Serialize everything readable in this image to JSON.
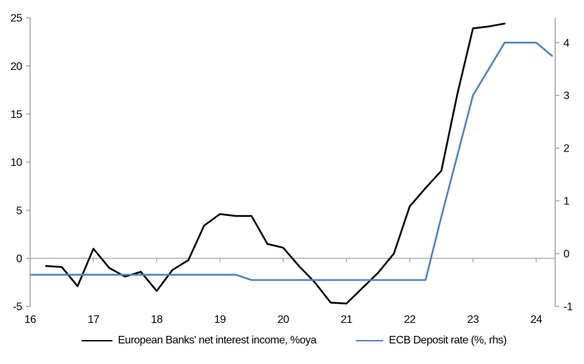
{
  "chart_data": {
    "type": "line",
    "grid": "zero-line-only",
    "legend_position": "bottom",
    "x_axis": {
      "range": [
        16,
        24.3
      ],
      "ticks": [
        16,
        17,
        18,
        19,
        20,
        21,
        22,
        23,
        24
      ]
    },
    "left_axis": {
      "range": [
        -5,
        25
      ],
      "ticks": [
        -5,
        0,
        5,
        10,
        15,
        20,
        25
      ]
    },
    "right_axis": {
      "range": [
        -1,
        4.47
      ],
      "ticks": [
        -1,
        0,
        1,
        2,
        3,
        4
      ]
    },
    "series": [
      {
        "name": "European Banks' net interest income, %oya",
        "axis": "left",
        "color": "#000000",
        "x": [
          16.25,
          16.5,
          16.75,
          17,
          17.25,
          17.5,
          17.75,
          18,
          18.25,
          18.5,
          18.75,
          19,
          19.25,
          19.5,
          19.75,
          20,
          20.25,
          20.5,
          20.75,
          21,
          21.25,
          21.5,
          21.75,
          22,
          22.25,
          22.5,
          22.75,
          23,
          23.25,
          23.5
        ],
        "values": [
          -0.8,
          -0.9,
          -2.9,
          1.0,
          -1.0,
          -1.9,
          -1.4,
          -3.4,
          -1.2,
          -0.2,
          3.4,
          4.6,
          4.4,
          4.4,
          1.5,
          1.1,
          -0.8,
          -2.5,
          -4.6,
          -4.7,
          -3.1,
          -1.5,
          0.5,
          5.4,
          7.3,
          9.1,
          17.0,
          23.9,
          24.1,
          24.4
        ]
      },
      {
        "name": "ECB Deposit rate (%, rhs)",
        "axis": "right",
        "color": "#4f81bd",
        "x": [
          16,
          16.25,
          16.5,
          16.75,
          17,
          17.25,
          17.5,
          17.75,
          18,
          18.25,
          18.5,
          18.75,
          19,
          19.25,
          19.5,
          19.75,
          20,
          20.25,
          20.5,
          20.75,
          21,
          21.25,
          21.5,
          21.75,
          22,
          22.25,
          22.5,
          22.75,
          23,
          23.25,
          23.5,
          23.75,
          24,
          24.25
        ],
        "values": [
          -0.4,
          -0.4,
          -0.4,
          -0.4,
          -0.4,
          -0.4,
          -0.4,
          -0.4,
          -0.4,
          -0.4,
          -0.4,
          -0.4,
          -0.4,
          -0.4,
          -0.5,
          -0.5,
          -0.5,
          -0.5,
          -0.5,
          -0.5,
          -0.5,
          -0.5,
          -0.5,
          -0.5,
          -0.5,
          -0.5,
          0.7,
          1.85,
          3.0,
          3.5,
          4.0,
          4.0,
          4.0,
          3.75
        ]
      }
    ]
  },
  "colors": {
    "axis_line": "#a6a6a6",
    "zero_line": "#a6a6a6",
    "text": "#000000",
    "series_black": "#000000",
    "series_blue": "#4f81bd",
    "background": "#ffffff"
  }
}
